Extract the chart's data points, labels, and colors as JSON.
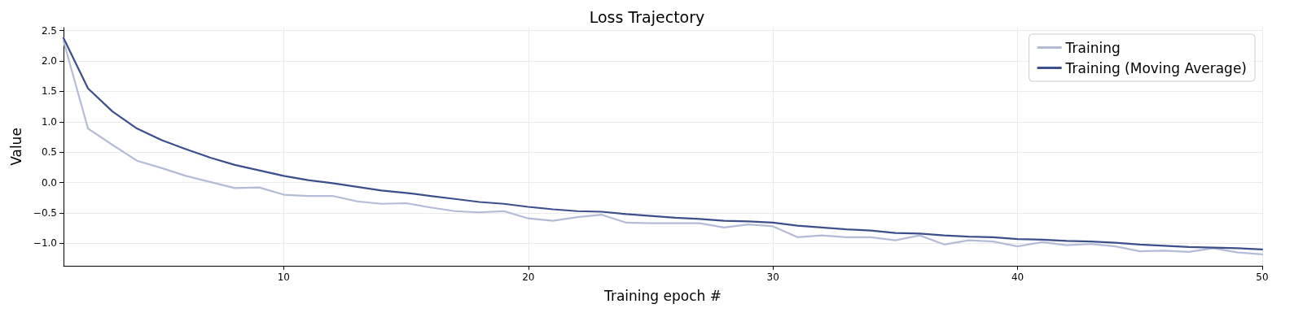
{
  "chart_data": {
    "type": "line",
    "title": "Loss Trajectory",
    "xlabel": "Training epoch #",
    "ylabel": "Value",
    "x": [
      1,
      2,
      3,
      4,
      5,
      6,
      7,
      8,
      9,
      10,
      11,
      12,
      13,
      14,
      15,
      16,
      17,
      18,
      19,
      20,
      21,
      22,
      23,
      24,
      25,
      26,
      27,
      28,
      29,
      30,
      31,
      32,
      33,
      34,
      35,
      36,
      37,
      38,
      39,
      40,
      41,
      42,
      43,
      44,
      45,
      46,
      47,
      48,
      49,
      50
    ],
    "series": [
      {
        "name": "Training",
        "color": "#b4bbd6",
        "values": [
          2.33,
          0.89,
          0.62,
          0.36,
          0.24,
          0.11,
          0.01,
          -0.09,
          -0.08,
          -0.2,
          -0.22,
          -0.22,
          -0.31,
          -0.35,
          -0.34,
          -0.41,
          -0.47,
          -0.49,
          -0.47,
          -0.59,
          -0.63,
          -0.57,
          -0.53,
          -0.66,
          -0.67,
          -0.67,
          -0.67,
          -0.74,
          -0.69,
          -0.72,
          -0.9,
          -0.87,
          -0.9,
          -0.9,
          -0.95,
          -0.87,
          -1.02,
          -0.95,
          -0.97,
          -1.05,
          -0.98,
          -1.03,
          -1.01,
          -1.05,
          -1.13,
          -1.12,
          -1.14,
          -1.08,
          -1.15,
          -1.18
        ]
      },
      {
        "name": "Training (Moving Average)",
        "color": "#3c4f8c",
        "values": [
          2.38,
          1.55,
          1.17,
          0.89,
          0.7,
          0.55,
          0.41,
          0.29,
          0.2,
          0.11,
          0.04,
          -0.01,
          -0.07,
          -0.13,
          -0.17,
          -0.22,
          -0.27,
          -0.32,
          -0.35,
          -0.4,
          -0.44,
          -0.47,
          -0.48,
          -0.52,
          -0.55,
          -0.58,
          -0.6,
          -0.63,
          -0.64,
          -0.66,
          -0.71,
          -0.74,
          -0.77,
          -0.79,
          -0.83,
          -0.84,
          -0.87,
          -0.89,
          -0.9,
          -0.93,
          -0.94,
          -0.96,
          -0.97,
          -0.99,
          -1.02,
          -1.04,
          -1.06,
          -1.07,
          -1.08,
          -1.1
        ]
      }
    ],
    "xlim": [
      1,
      50
    ],
    "xticks": [
      10,
      20,
      30,
      40,
      50
    ],
    "ylim": [
      -1.37,
      2.55
    ],
    "yticks": [
      {
        "value": -1,
        "label": "−1.0"
      },
      {
        "value": -0.5,
        "label": "−0.5"
      },
      {
        "value": 0,
        "label": "0.0"
      },
      {
        "value": 0.5,
        "label": "0.5"
      },
      {
        "value": 1,
        "label": "1.0"
      },
      {
        "value": 1.5,
        "label": "1.5"
      },
      {
        "value": 2,
        "label": "2.0"
      },
      {
        "value": 2.5,
        "label": "2.5"
      }
    ],
    "grid": true,
    "legend": "top right",
    "marker": "none",
    "line_style": "solid"
  }
}
